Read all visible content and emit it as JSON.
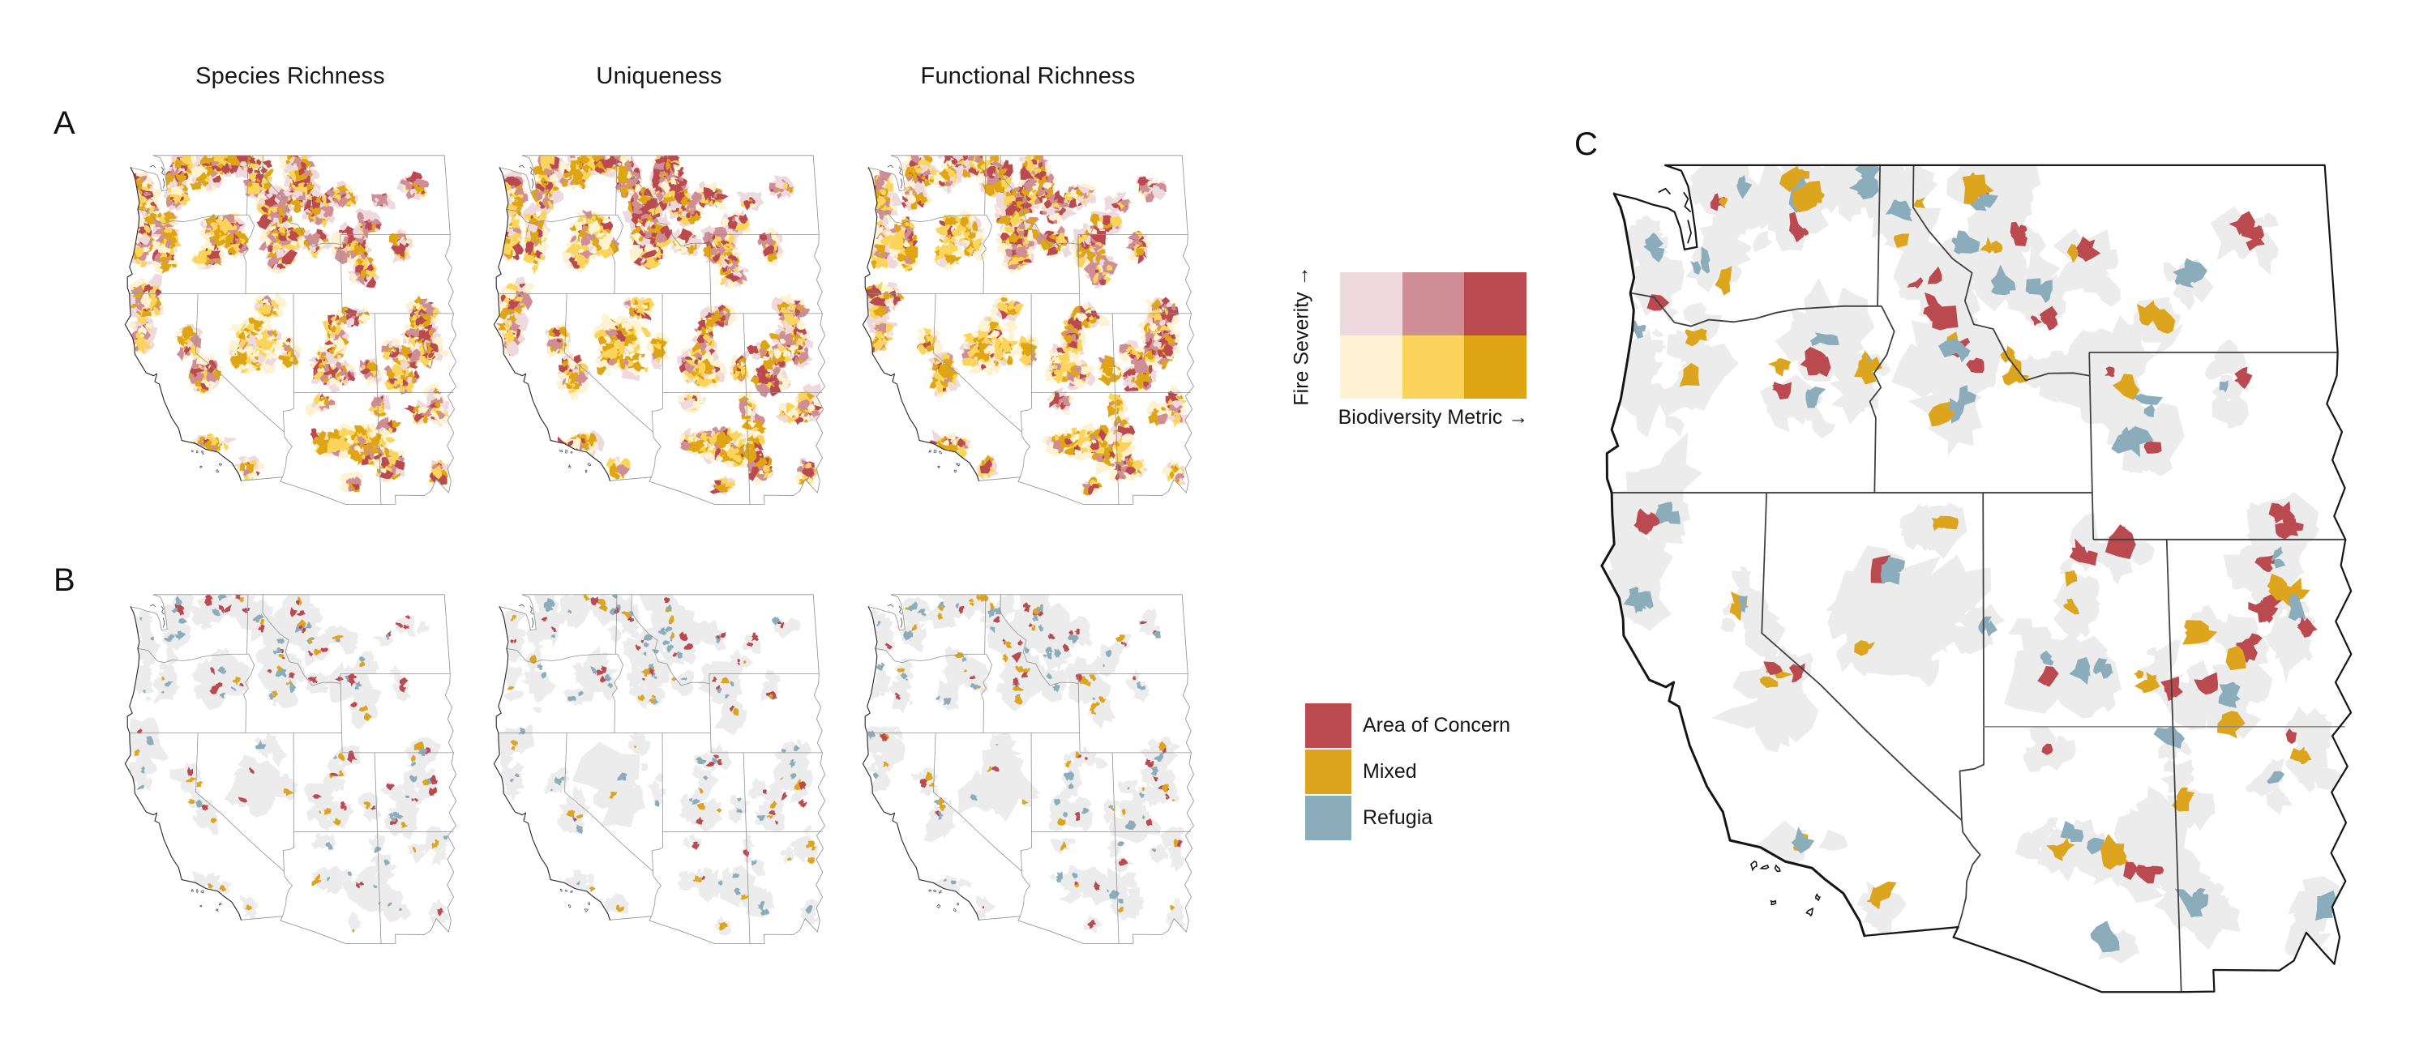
{
  "figure": {
    "background": "#ffffff",
    "panels": {
      "a": {
        "label": "A",
        "column_titles": [
          "Species Richness",
          "Uniqueness",
          "Functional Richness"
        ]
      },
      "b": {
        "label": "B"
      },
      "c": {
        "label": "C"
      }
    }
  },
  "bivariate_legend": {
    "y_axis_label": "Fire Severity →",
    "x_axis_label": "Biodiversity Metric →",
    "grid_colors": [
      [
        "#eedade",
        "#cf8e96",
        "#bb4a50"
      ],
      [
        "#fdf3d2",
        "#fbd45c",
        "#dfa512"
      ]
    ]
  },
  "classification_legend": {
    "items": [
      {
        "label": "Area of Concern",
        "color": "#bb4a50"
      },
      {
        "label": "Mixed",
        "color": "#dda41e"
      },
      {
        "label": "Refugia",
        "color": "#8badbb"
      }
    ]
  },
  "map_style": {
    "forest_mask_color": "#ececec",
    "state_border_color": "#8f8f8f",
    "coastline_color": "#1b1b1b",
    "background": "#ffffff"
  }
}
